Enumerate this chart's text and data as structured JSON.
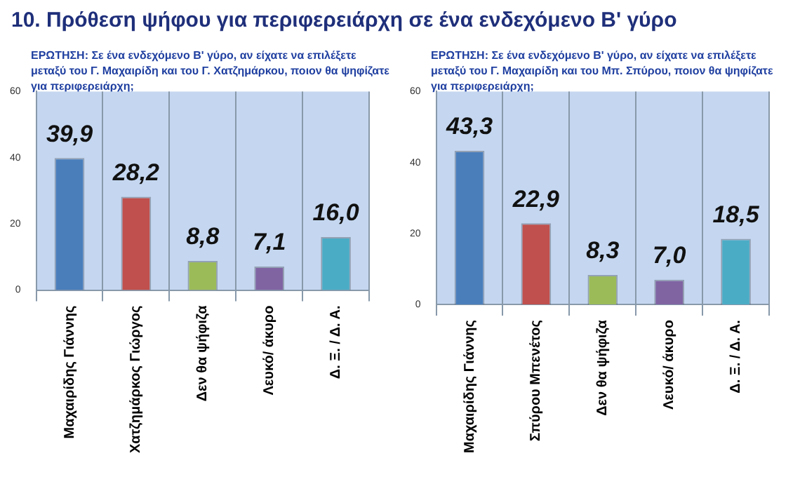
{
  "chart_data": [
    {
      "type": "bar",
      "title": "10. Πρόθεση ψήφου για περιφερειάρχη σε ένα ενδεχόμενο Β' γύρο",
      "subtitle": "ΕΡΩΤΗΣΗ: Σε ένα ενδεχόμενο Β' γύρο, αν είχατε να επιλέξετε μεταξύ του Γ. Μαχαιρίδη και του Γ. Χατζημάρκου, ποιον θα ψηφίζατε για περιφερειάρχη;",
      "categories": [
        "Μαχαιρίδης Γιάννης",
        "Χατζημάρκος Γιώργος",
        "Δεν θα ψήφιζα",
        "Λευκό/ άκυρο",
        "Δ. Ξ. / Δ. Α."
      ],
      "values": [
        39.9,
        28.2,
        8.8,
        7.1,
        16.0
      ],
      "value_labels": [
        "39,9",
        "28,2",
        "8,8",
        "7,1",
        "16,0"
      ],
      "colors": [
        "#4a7ebb",
        "#c0504d",
        "#9bbb59",
        "#8064a2",
        "#4bacc6"
      ],
      "ylim": [
        0,
        60
      ],
      "yticks": [
        0,
        20,
        40,
        60
      ],
      "grid": "x"
    },
    {
      "type": "bar",
      "subtitle": "ΕΡΩΤΗΣΗ: Σε ένα ενδεχόμενο Β' γύρο, αν είχατε να επιλέξετε μεταξύ του Γ. Μαχαιρίδη και του Μπ. Σπύρου, ποιον θα ψηφίζατε για περιφερειάρχη;",
      "categories": [
        "Μαχαιρίδης Γιάννης",
        "Σπύρου Μπενέτος",
        "Δεν θα ψήφιζα",
        "Λευκό/ άκυρο",
        "Δ. Ξ. / Δ. Α."
      ],
      "values": [
        43.3,
        22.9,
        8.3,
        7.0,
        18.5
      ],
      "value_labels": [
        "43,3",
        "22,9",
        "8,3",
        "7,0",
        "18,5"
      ],
      "colors": [
        "#4a7ebb",
        "#c0504d",
        "#9bbb59",
        "#8064a2",
        "#4bacc6"
      ],
      "ylim": [
        0,
        60
      ],
      "yticks": [
        0,
        20,
        40,
        60
      ],
      "grid": "x"
    }
  ]
}
